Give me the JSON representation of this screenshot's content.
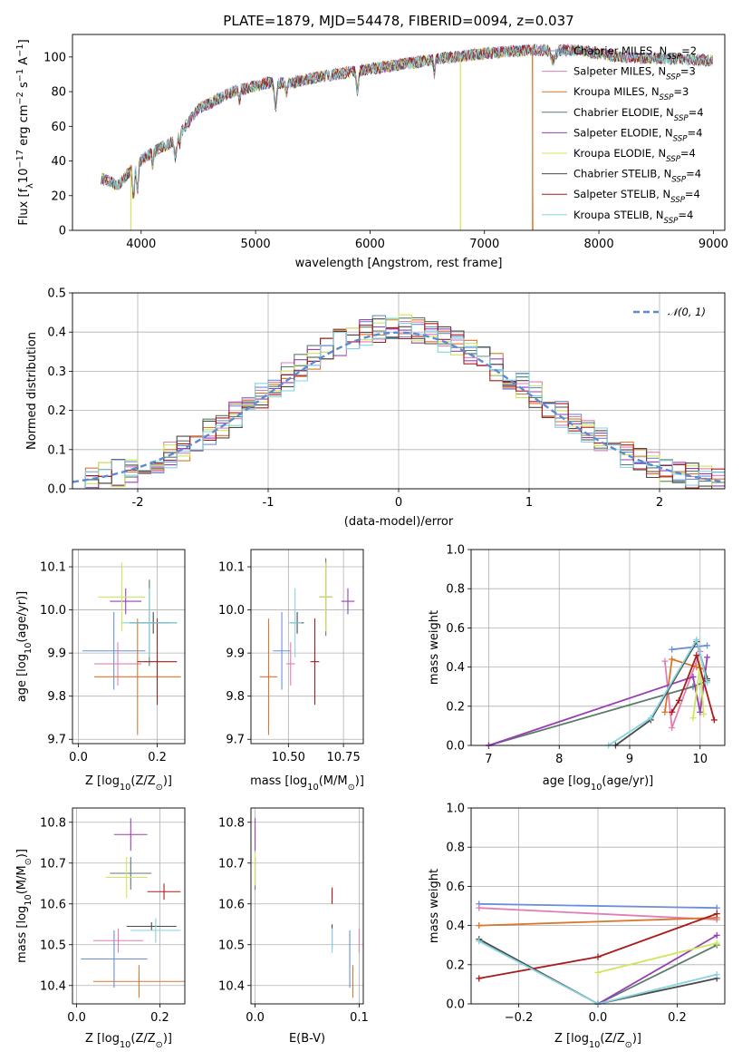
{
  "title": "PLATE=1879, MJD=54478, FIBERID=0094, z=0.037",
  "colors": {
    "Chabrier MILES": "#6a8fd8",
    "Salpeter MILES": "#e07fb4",
    "Kroupa MILES": "#d9772d",
    "Chabrier ELODIE": "#5c7c6a",
    "Salpeter ELODIE": "#9a3fb6",
    "Kroupa ELODIE": "#cfe65a",
    "Chabrier STELIB": "#4a4a4a",
    "Salpeter STELIB": "#a91c1c",
    "Kroupa STELIB": "#86d3e2",
    "normal": "#5b8bd6"
  },
  "chart_data": [
    {
      "id": "spectrum",
      "type": "line",
      "xlabel": "wavelength [Angstrom, rest frame]",
      "ylabel": "Flux [f_λ10^{-17} erg cm^{-2} s^{-1} A^{-1}]",
      "xlim": [
        3400,
        9100
      ],
      "ylim": [
        0,
        113
      ],
      "xticks": [
        4000,
        5000,
        6000,
        7000,
        8000,
        9000
      ],
      "yticks": [
        0,
        20,
        40,
        60,
        80,
        100
      ],
      "legend_position": "right",
      "legend": [
        {
          "name": "Chabrier MILES",
          "nssp": "2"
        },
        {
          "name": "Salpeter MILES",
          "nssp": "3"
        },
        {
          "name": "Kroupa MILES",
          "nssp": "3"
        },
        {
          "name": "Chabrier ELODIE",
          "nssp": "4"
        },
        {
          "name": "Salpeter ELODIE",
          "nssp": "4"
        },
        {
          "name": "Kroupa ELODIE",
          "nssp": "4"
        },
        {
          "name": "Chabrier STELIB",
          "nssp": "4"
        },
        {
          "name": "Salpeter STELIB",
          "nssp": "4"
        },
        {
          "name": "Kroupa STELIB",
          "nssp": "4"
        }
      ],
      "continuum": [
        [
          3650,
          30
        ],
        [
          3800,
          26
        ],
        [
          3950,
          38
        ],
        [
          4100,
          45
        ],
        [
          4300,
          52
        ],
        [
          4500,
          70
        ],
        [
          4800,
          80
        ],
        [
          5100,
          85
        ],
        [
          5300,
          85
        ],
        [
          5600,
          89
        ],
        [
          5900,
          92
        ],
        [
          6200,
          95
        ],
        [
          6600,
          99
        ],
        [
          7000,
          102
        ],
        [
          7400,
          104
        ],
        [
          7800,
          104
        ],
        [
          8200,
          100
        ],
        [
          8600,
          99
        ],
        [
          9000,
          98
        ]
      ]
    },
    {
      "id": "residuals",
      "type": "histogram",
      "xlabel": "(data-model)/error",
      "ylabel": "Normed distribution",
      "xlim": [
        -2.5,
        2.5
      ],
      "ylim": [
        0,
        0.5
      ],
      "xticks": [
        -2,
        -1,
        0,
        1,
        2
      ],
      "yticks": [
        0.0,
        0.1,
        0.2,
        0.3,
        0.4,
        0.5
      ],
      "grid": true,
      "legend_position": "top-right",
      "reference": {
        "label": "𝒩(0, 1)",
        "mean": 0,
        "sigma": 1
      }
    },
    {
      "id": "age-vs-Z",
      "type": "scatter",
      "xlabel": "Z [log10(Z/Z⊙)]",
      "ylabel": "age  [log10(age/yr)]",
      "xlim": [
        -0.015,
        0.27
      ],
      "ylim": [
        9.69,
        10.14
      ],
      "xticks": [
        0.0,
        0.2
      ],
      "xticklabels": [
        "0.0",
        "0.2"
      ],
      "yticks": [
        9.7,
        9.8,
        9.9,
        10.0,
        10.1
      ],
      "grid": true,
      "points": [
        {
          "name": "Chabrier MILES",
          "x": 0.09,
          "y": 9.905,
          "xerr": 0.08,
          "yerr": 0.09
        },
        {
          "name": "Salpeter MILES",
          "x": 0.1,
          "y": 9.875,
          "xerr": 0.06,
          "yerr": 0.05
        },
        {
          "name": "Kroupa MILES",
          "x": 0.15,
          "y": 9.845,
          "xerr": 0.11,
          "yerr": 0.135
        },
        {
          "name": "Chabrier ELODIE",
          "x": 0.18,
          "y": 9.97,
          "xerr": 0.05,
          "yerr": 0.1
        },
        {
          "name": "Salpeter ELODIE",
          "x": 0.12,
          "y": 10.02,
          "xerr": 0.04,
          "yerr": 0.03
        },
        {
          "name": "Kroupa ELODIE",
          "x": 0.11,
          "y": 10.03,
          "xerr": 0.06,
          "yerr": 0.08
        },
        {
          "name": "Chabrier STELIB",
          "x": 0.19,
          "y": 9.97,
          "xerr": 0.06,
          "yerr": 0.025
        },
        {
          "name": "Salpeter STELIB",
          "x": 0.2,
          "y": 9.88,
          "xerr": 0.05,
          "yerr": 0.1
        },
        {
          "name": "Kroupa STELIB",
          "x": 0.18,
          "y": 9.97,
          "xerr": 0.07,
          "yerr": 0.08
        }
      ]
    },
    {
      "id": "age-vs-mass",
      "type": "scatter",
      "xlabel": "mass [log10(M/M⊙)]",
      "ylabel": "",
      "xlim": [
        10.33,
        10.84
      ],
      "ylim": [
        9.69,
        10.14
      ],
      "xticks": [
        10.5,
        10.75
      ],
      "xticklabels": [
        "10.50",
        "10.75"
      ],
      "yticks": [
        9.7,
        9.8,
        9.9,
        10.0,
        10.1
      ],
      "grid": true,
      "points": [
        {
          "name": "Chabrier MILES",
          "x": 10.47,
          "y": 9.905,
          "xerr": 0.04,
          "yerr": 0.09
        },
        {
          "name": "Salpeter MILES",
          "x": 10.51,
          "y": 9.875,
          "xerr": 0.02,
          "yerr": 0.05
        },
        {
          "name": "Kroupa MILES",
          "x": 10.41,
          "y": 9.845,
          "xerr": 0.04,
          "yerr": 0.135
        },
        {
          "name": "Chabrier ELODIE",
          "x": 10.67,
          "y": 10.03,
          "xerr": 0.03,
          "yerr": 0.09
        },
        {
          "name": "Salpeter ELODIE",
          "x": 10.77,
          "y": 10.02,
          "xerr": 0.03,
          "yerr": 0.03
        },
        {
          "name": "Kroupa ELODIE",
          "x": 10.67,
          "y": 10.03,
          "xerr": 0.03,
          "yerr": 0.08
        },
        {
          "name": "Chabrier STELIB",
          "x": 10.54,
          "y": 9.97,
          "xerr": 0.03,
          "yerr": 0.025
        },
        {
          "name": "Salpeter STELIB",
          "x": 10.62,
          "y": 9.88,
          "xerr": 0.02,
          "yerr": 0.1
        },
        {
          "name": "Kroupa STELIB",
          "x": 10.53,
          "y": 9.97,
          "xerr": 0.03,
          "yerr": 0.08
        }
      ]
    },
    {
      "id": "weight-vs-age",
      "type": "line",
      "xlabel": "age  [log10(age/yr)]",
      "ylabel": "mass weight",
      "xlim": [
        6.75,
        10.35
      ],
      "ylim": [
        0,
        1
      ],
      "xticks": [
        7,
        8,
        9,
        10
      ],
      "yticks": [
        0.0,
        0.2,
        0.4,
        0.6,
        0.8,
        1.0
      ],
      "grid": true,
      "series": [
        {
          "name": "Chabrier MILES",
          "x": [
            9.6,
            10.1
          ],
          "y": [
            0.49,
            0.51
          ]
        },
        {
          "name": "Salpeter MILES",
          "x": [
            9.5,
            9.6,
            10.0
          ],
          "y": [
            0.43,
            0.09,
            0.48
          ]
        },
        {
          "name": "Kroupa MILES",
          "x": [
            9.5,
            9.6,
            9.95,
            10.05
          ],
          "y": [
            0.17,
            0.44,
            0.4,
            0.39
          ]
        },
        {
          "name": "Chabrier ELODIE",
          "x": [
            7.0,
            9.9,
            10.1
          ],
          "y": [
            0.0,
            0.3,
            0.33
          ]
        },
        {
          "name": "Salpeter ELODIE",
          "x": [
            7.0,
            9.9,
            10.0,
            10.1
          ],
          "y": [
            0.0,
            0.35,
            0.17,
            0.45
          ]
        },
        {
          "name": "Kroupa ELODIE",
          "x": [
            9.9,
            10.0,
            10.05
          ],
          "y": [
            0.14,
            0.41,
            0.16
          ]
        },
        {
          "name": "Chabrier STELIB",
          "x": [
            8.8,
            9.3,
            9.95,
            10.1
          ],
          "y": [
            0.0,
            0.13,
            0.53,
            0.34
          ]
        },
        {
          "name": "Salpeter STELIB",
          "x": [
            9.6,
            9.7,
            9.95,
            10.2
          ],
          "y": [
            0.17,
            0.23,
            0.46,
            0.13
          ]
        },
        {
          "name": "Kroupa STELIB",
          "x": [
            8.7,
            9.3,
            9.95,
            10.1
          ],
          "y": [
            0.0,
            0.14,
            0.54,
            0.32
          ]
        }
      ]
    },
    {
      "id": "mass-vs-Z",
      "type": "scatter",
      "xlabel": "Z [log10(Z/Z⊙)]",
      "ylabel": "mass [log10(M/M⊙)]",
      "xlim": [
        -0.01,
        0.26
      ],
      "ylim": [
        10.355,
        10.835
      ],
      "xticks": [
        0.0,
        0.2
      ],
      "xticklabels": [
        "0.0",
        "0.2"
      ],
      "yticks": [
        10.4,
        10.5,
        10.6,
        10.7,
        10.8
      ],
      "grid": true,
      "points": [
        {
          "name": "Chabrier MILES",
          "x": 0.09,
          "y": 10.465,
          "xerr": 0.08,
          "yerr": 0.07
        },
        {
          "name": "Salpeter MILES",
          "x": 0.1,
          "y": 10.51,
          "xerr": 0.06,
          "yerr": 0.03
        },
        {
          "name": "Kroupa MILES",
          "x": 0.15,
          "y": 10.41,
          "xerr": 0.11,
          "yerr": 0.04
        },
        {
          "name": "Chabrier ELODIE",
          "x": 0.13,
          "y": 10.675,
          "xerr": 0.05,
          "yerr": 0.04
        },
        {
          "name": "Salpeter ELODIE",
          "x": 0.13,
          "y": 10.77,
          "xerr": 0.04,
          "yerr": 0.04
        },
        {
          "name": "Kroupa ELODIE",
          "x": 0.12,
          "y": 10.665,
          "xerr": 0.05,
          "yerr": 0.05
        },
        {
          "name": "Chabrier STELIB",
          "x": 0.18,
          "y": 10.545,
          "xerr": 0.06,
          "yerr": 0.01
        },
        {
          "name": "Salpeter STELIB",
          "x": 0.21,
          "y": 10.63,
          "xerr": 0.04,
          "yerr": 0.02
        },
        {
          "name": "Kroupa STELIB",
          "x": 0.19,
          "y": 10.535,
          "xerr": 0.06,
          "yerr": 0.03
        }
      ]
    },
    {
      "id": "mass-vs-EBV",
      "type": "scatter",
      "xlabel": "E(B-V)",
      "ylabel": "",
      "xlim": [
        -0.004,
        0.104
      ],
      "ylim": [
        10.355,
        10.835
      ],
      "xticks": [
        0.0,
        0.1
      ],
      "xticklabels": [
        "0.0",
        "0.1"
      ],
      "yticks": [
        10.4,
        10.5,
        10.6,
        10.7,
        10.8
      ],
      "grid": true,
      "points": [
        {
          "name": "Chabrier MILES",
          "x": 0.091,
          "y": 10.465,
          "xerr": 0.0,
          "yerr": 0.07
        },
        {
          "name": "Salpeter MILES",
          "x": 0.1,
          "y": 10.51,
          "xerr": 0.0,
          "yerr": 0.03
        },
        {
          "name": "Kroupa MILES",
          "x": 0.094,
          "y": 10.41,
          "xerr": 0.0,
          "yerr": 0.04
        },
        {
          "name": "Chabrier ELODIE",
          "x": 0.0,
          "y": 10.675,
          "xerr": 0.0,
          "yerr": 0.04
        },
        {
          "name": "Salpeter ELODIE",
          "x": 0.0,
          "y": 10.77,
          "xerr": 0.0,
          "yerr": 0.04
        },
        {
          "name": "Kroupa ELODIE",
          "x": 0.0,
          "y": 10.685,
          "xerr": 0.0,
          "yerr": 0.04
        },
        {
          "name": "Chabrier STELIB",
          "x": 0.074,
          "y": 10.52,
          "xerr": 0.0,
          "yerr": 0.03
        },
        {
          "name": "Salpeter STELIB",
          "x": 0.074,
          "y": 10.62,
          "xerr": 0.0,
          "yerr": 0.02
        },
        {
          "name": "Kroupa STELIB",
          "x": 0.074,
          "y": 10.51,
          "xerr": 0.0,
          "yerr": 0.03
        }
      ]
    },
    {
      "id": "weight-vs-Z",
      "type": "line",
      "xlabel": "Z [log10(Z/Z⊙)]",
      "ylabel": "mass weight",
      "xlim": [
        -0.32,
        0.32
      ],
      "ylim": [
        0,
        1
      ],
      "xticks": [
        -0.2,
        0.0,
        0.2
      ],
      "xticklabels": [
        "−0.2",
        "0.0",
        "0.2"
      ],
      "yticks": [
        0.0,
        0.2,
        0.4,
        0.6,
        0.8,
        1.0
      ],
      "grid": true,
      "series": [
        {
          "name": "Chabrier MILES",
          "x": [
            -0.3,
            0.3
          ],
          "y": [
            0.51,
            0.49
          ]
        },
        {
          "name": "Salpeter MILES",
          "x": [
            -0.3,
            0.3
          ],
          "y": [
            0.49,
            0.43
          ]
        },
        {
          "name": "Kroupa MILES",
          "x": [
            -0.3,
            0.3
          ],
          "y": [
            0.4,
            0.44
          ]
        },
        {
          "name": "Chabrier ELODIE",
          "x": [
            0.0,
            0.3
          ],
          "y": [
            0.0,
            0.3
          ]
        },
        {
          "name": "Salpeter ELODIE",
          "x": [
            0.0,
            0.3
          ],
          "y": [
            0.0,
            0.35
          ]
        },
        {
          "name": "Kroupa ELODIE",
          "x": [
            0.0,
            0.3
          ],
          "y": [
            0.16,
            0.31
          ]
        },
        {
          "name": "Chabrier STELIB",
          "x": [
            -0.3,
            0.0,
            0.3
          ],
          "y": [
            0.33,
            0.0,
            0.13
          ]
        },
        {
          "name": "Salpeter STELIB",
          "x": [
            -0.3,
            0.0,
            0.3
          ],
          "y": [
            0.13,
            0.24,
            0.46
          ]
        },
        {
          "name": "Kroupa STELIB",
          "x": [
            -0.3,
            0.0,
            0.3
          ],
          "y": [
            0.32,
            0.0,
            0.15
          ]
        }
      ]
    }
  ]
}
